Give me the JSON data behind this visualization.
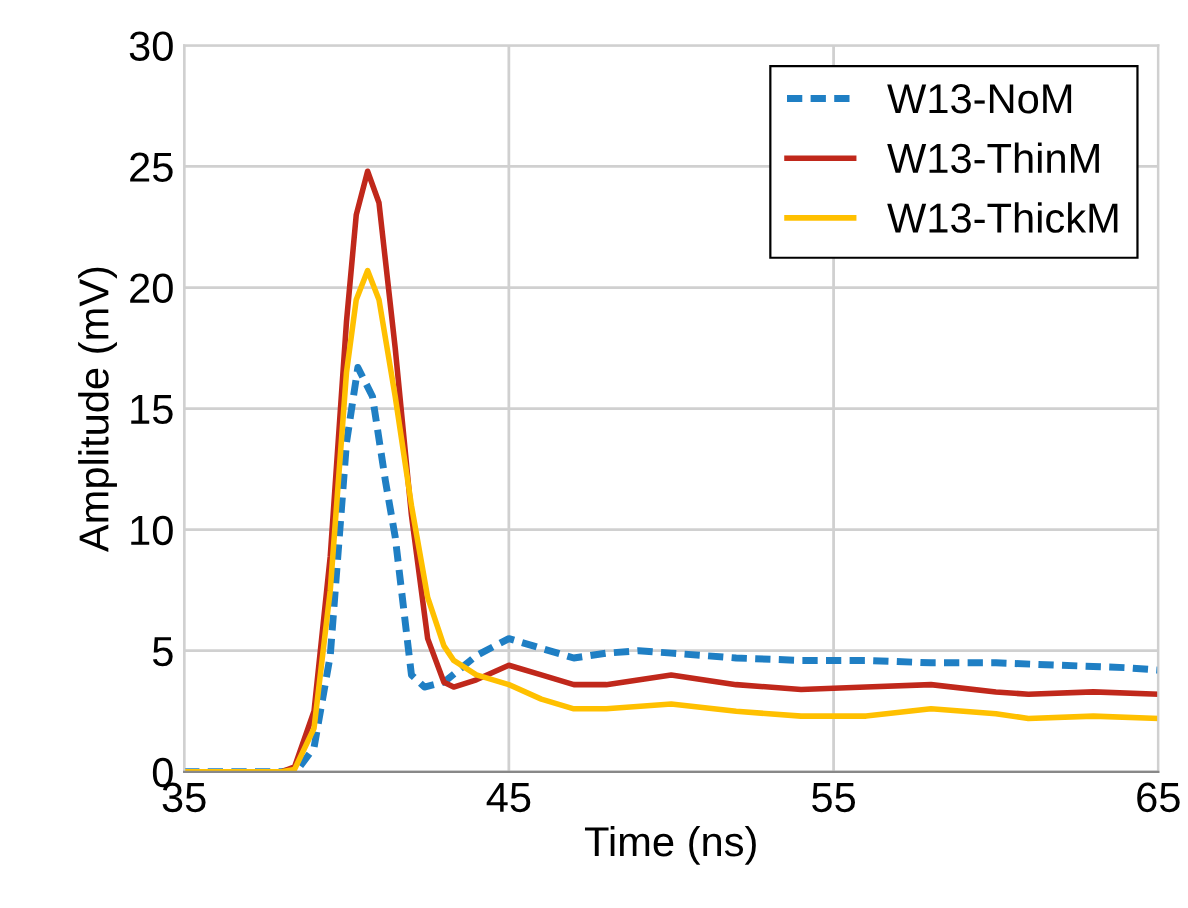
{
  "chart_data": {
    "type": "line",
    "xlabel": "Time (ns)",
    "ylabel": "Amplitude (mV)",
    "xlim": [
      35,
      65
    ],
    "xticks": [
      35,
      45,
      55,
      65
    ],
    "ylim": [
      0,
      30
    ],
    "yticks": [
      0,
      5,
      10,
      15,
      20,
      25,
      30
    ],
    "grid": true,
    "legend": "top right",
    "marker": "none",
    "series": [
      {
        "name": "W13-NoM",
        "color": "#1f7fc4",
        "line_style": "dashed",
        "x": [
          35,
          37,
          38,
          38.5,
          39,
          39.5,
          40,
          40.35,
          40.8,
          41.2,
          41.5,
          42,
          42.4,
          43,
          44,
          45,
          46,
          47,
          48,
          49,
          50,
          52,
          54,
          56,
          58,
          60,
          62,
          64,
          65
        ],
        "values": [
          0,
          0,
          0,
          0.1,
          1,
          4.8,
          13.6,
          16.7,
          15.5,
          12,
          9.7,
          4,
          3.5,
          3.7,
          4.8,
          5.5,
          5.1,
          4.7,
          4.9,
          5,
          4.9,
          4.7,
          4.6,
          4.6,
          4.5,
          4.5,
          4.4,
          4.3,
          4.2
        ]
      },
      {
        "name": "W13-ThinM",
        "color": "#c0281b",
        "line_style": "solid",
        "x": [
          35,
          37,
          38,
          38.4,
          39,
          39.5,
          40,
          40.3,
          40.65,
          41,
          41.5,
          42,
          42.5,
          43,
          43.3,
          44,
          45,
          46,
          47,
          48,
          50,
          52,
          54,
          56,
          58,
          60,
          61,
          63,
          65
        ],
        "values": [
          0,
          0,
          0,
          0.2,
          2.5,
          8.9,
          18.6,
          23,
          24.8,
          23.5,
          17.5,
          10.6,
          5.5,
          3.7,
          3.5,
          3.8,
          4.4,
          4,
          3.6,
          3.6,
          4,
          3.6,
          3.4,
          3.5,
          3.6,
          3.3,
          3.2,
          3.3,
          3.2
        ]
      },
      {
        "name": "W13-ThickM",
        "color": "#ffc000",
        "line_style": "solid",
        "x": [
          35,
          37,
          38,
          38.4,
          39,
          39.5,
          40,
          40.3,
          40.65,
          41,
          41.5,
          42,
          42.5,
          43,
          43.3,
          44,
          45,
          46,
          47,
          48,
          50,
          52,
          54,
          56,
          58,
          60,
          61,
          63,
          65
        ],
        "values": [
          0,
          0,
          0,
          0.1,
          1.8,
          7.5,
          16.5,
          19.5,
          20.7,
          19.5,
          15.5,
          11,
          7.2,
          5.2,
          4.6,
          4,
          3.6,
          3,
          2.6,
          2.6,
          2.8,
          2.5,
          2.3,
          2.3,
          2.6,
          2.4,
          2.2,
          2.3,
          2.2
        ]
      }
    ]
  }
}
